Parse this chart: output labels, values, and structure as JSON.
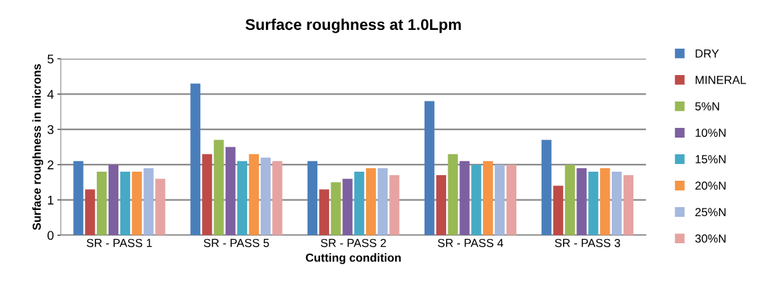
{
  "chart_data": {
    "type": "bar",
    "title": "Surface roughness at 1.0Lpm",
    "xlabel": "Cutting condition",
    "ylabel": "Surface roughness in microns",
    "categories": [
      "SR - PASS 1",
      "SR - PASS 5",
      "SR - PASS 2",
      "SR - PASS 4",
      "SR - PASS 3"
    ],
    "series": [
      {
        "name": "DRY",
        "color": "#4a7ebb",
        "values": [
          2.1,
          4.3,
          2.1,
          3.8,
          2.7
        ]
      },
      {
        "name": "MINERAL",
        "color": "#be4b48",
        "values": [
          1.3,
          2.3,
          1.3,
          1.7,
          1.4
        ]
      },
      {
        "name": "5%N",
        "color": "#98b954",
        "values": [
          1.8,
          2.7,
          1.5,
          2.3,
          2.0
        ]
      },
      {
        "name": "10%N",
        "color": "#7d60a0",
        "values": [
          2.0,
          2.5,
          1.6,
          2.1,
          1.9
        ]
      },
      {
        "name": "15%N",
        "color": "#46aac5",
        "values": [
          1.8,
          2.1,
          1.8,
          2.0,
          1.8
        ]
      },
      {
        "name": "20%N",
        "color": "#f69546",
        "values": [
          1.8,
          2.3,
          1.9,
          2.1,
          1.9
        ]
      },
      {
        "name": "25%N",
        "color": "#a5b8de",
        "values": [
          1.9,
          2.2,
          1.9,
          2.0,
          1.8
        ]
      },
      {
        "name": "30%N",
        "color": "#e6a3a1",
        "values": [
          1.6,
          2.1,
          1.7,
          2.0,
          1.7
        ]
      }
    ],
    "ylim": [
      0,
      5
    ],
    "yticks": [
      0,
      1,
      2,
      3,
      4,
      5
    ],
    "grid": "y",
    "legend": "right"
  }
}
